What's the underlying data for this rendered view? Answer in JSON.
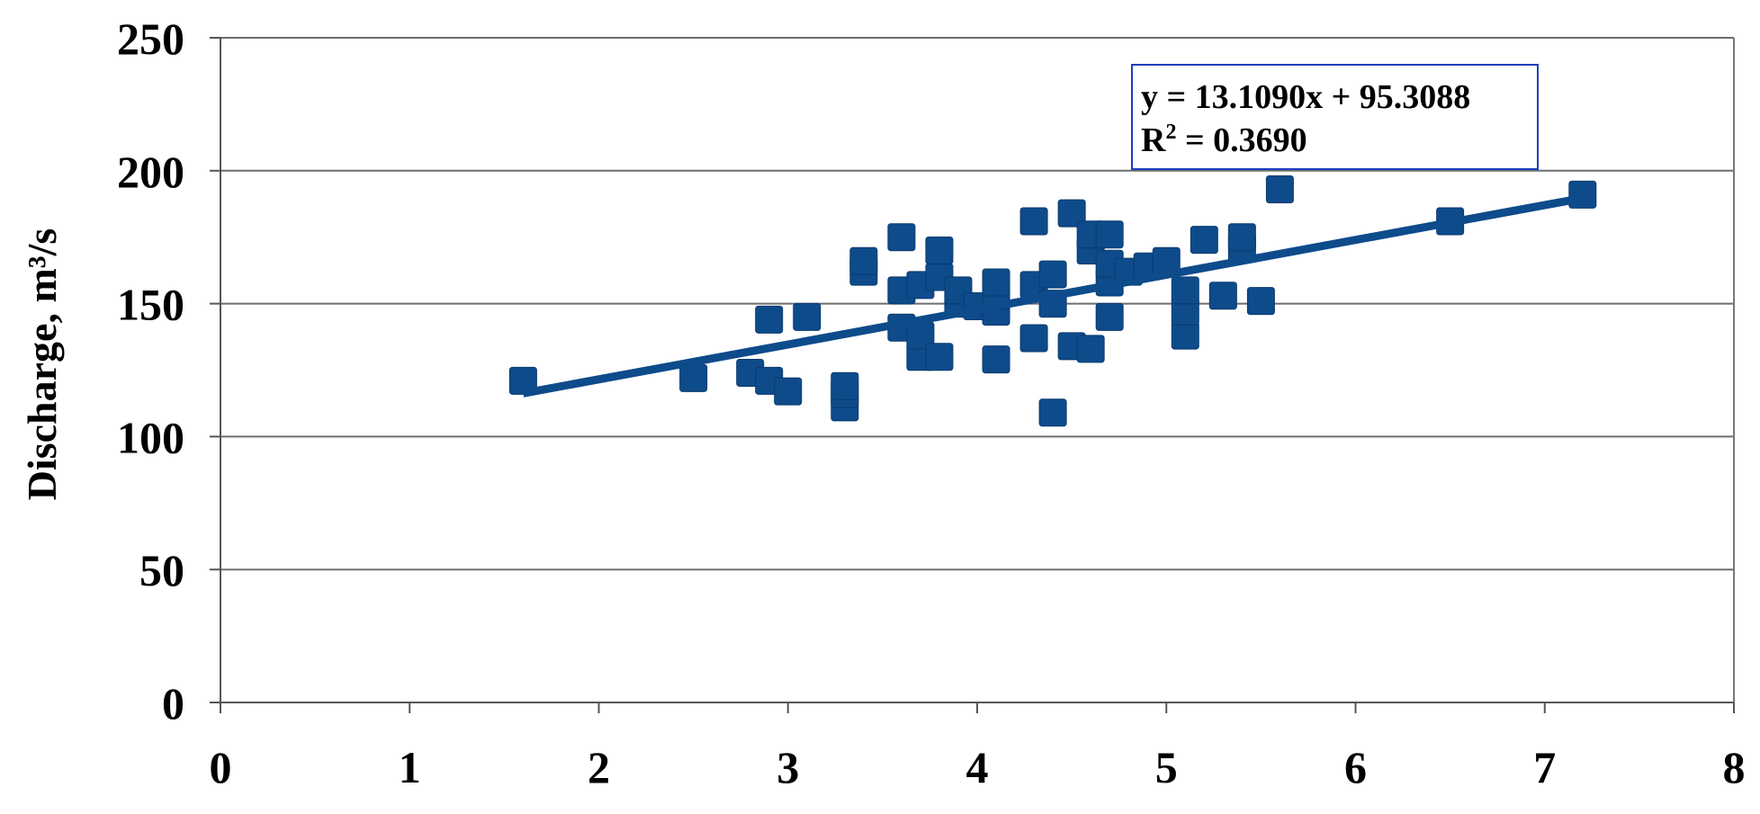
{
  "chart_data": {
    "type": "scatter",
    "title": "",
    "xlabel": "",
    "ylabel": "Discharge, m³/s",
    "xlim": [
      0,
      8
    ],
    "ylim": [
      0,
      250
    ],
    "x_ticks": [
      "0",
      "1",
      "2",
      "3",
      "4",
      "5",
      "6",
      "7",
      "8"
    ],
    "y_ticks": [
      "0",
      "50",
      "100",
      "150",
      "200",
      "250"
    ],
    "grid": "horizontal",
    "marker": "square",
    "marker_color": "#0E4B8B",
    "series": [
      {
        "points": [
          [
            1.6,
            121
          ],
          [
            2.5,
            122
          ],
          [
            2.8,
            124
          ],
          [
            2.9,
            121
          ],
          [
            2.9,
            144
          ],
          [
            3.0,
            117
          ],
          [
            3.1,
            145
          ],
          [
            3.3,
            111
          ],
          [
            3.3,
            116
          ],
          [
            3.3,
            119
          ],
          [
            3.4,
            162
          ],
          [
            3.4,
            166
          ],
          [
            3.6,
            141
          ],
          [
            3.6,
            155
          ],
          [
            3.6,
            175
          ],
          [
            3.7,
            130
          ],
          [
            3.7,
            138
          ],
          [
            3.7,
            157
          ],
          [
            3.8,
            130
          ],
          [
            3.8,
            160
          ],
          [
            3.8,
            170
          ],
          [
            3.9,
            150
          ],
          [
            3.9,
            155
          ],
          [
            4.0,
            149
          ],
          [
            4.1,
            129
          ],
          [
            4.1,
            147
          ],
          [
            4.1,
            153
          ],
          [
            4.1,
            158
          ],
          [
            4.3,
            137
          ],
          [
            4.3,
            157
          ],
          [
            4.3,
            181
          ],
          [
            4.4,
            109
          ],
          [
            4.4,
            150
          ],
          [
            4.4,
            161
          ],
          [
            4.5,
            134
          ],
          [
            4.5,
            184
          ],
          [
            4.6,
            133
          ],
          [
            4.6,
            170
          ],
          [
            4.6,
            176
          ],
          [
            4.7,
            145
          ],
          [
            4.7,
            158
          ],
          [
            4.7,
            165
          ],
          [
            4.7,
            176
          ],
          [
            4.8,
            162
          ],
          [
            4.9,
            164
          ],
          [
            5.0,
            166
          ],
          [
            5.1,
            138
          ],
          [
            5.1,
            147
          ],
          [
            5.1,
            155
          ],
          [
            5.2,
            174
          ],
          [
            5.3,
            153
          ],
          [
            5.4,
            171
          ],
          [
            5.4,
            175
          ],
          [
            5.5,
            151
          ],
          [
            5.6,
            193
          ],
          [
            6.5,
            181
          ],
          [
            7.2,
            191
          ]
        ]
      }
    ],
    "trendline": {
      "slope": 13.109,
      "intercept": 95.3088,
      "x_start": 1.6,
      "x_end": 7.2,
      "color": "#0E4B8B"
    },
    "annotation": {
      "equation": "y = 13.1090x + 95.3088",
      "r2_label": "R",
      "r2_sup": "2",
      "r2_value": " = 0.3690",
      "placement": "top-right",
      "border_color": "#1F3FBF"
    }
  }
}
